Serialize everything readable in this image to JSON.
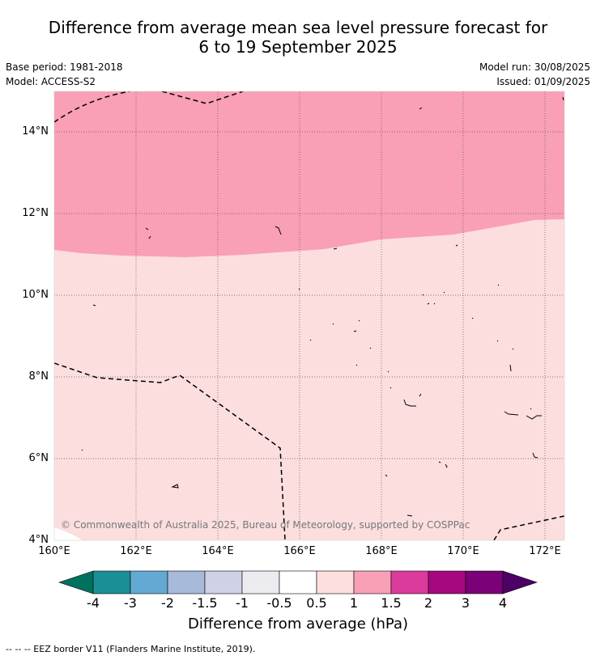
{
  "title": {
    "line1": "Difference from average mean sea level pressure forecast for",
    "line2": "6 to 19 September 2025"
  },
  "meta": {
    "base_period": "Base period: 1981-2018",
    "model": "Model: ACCESS-S2",
    "model_run": "Model run: 30/08/2025",
    "issued": "Issued: 01/09/2025"
  },
  "map": {
    "lat_ticks": [
      "14°N",
      "12°N",
      "10°N",
      "8°N",
      "6°N",
      "4°N"
    ],
    "lon_ticks": [
      "160°E",
      "162°E",
      "164°E",
      "166°E",
      "168°E",
      "170°E",
      "172°E"
    ],
    "lat_range": [
      4,
      15
    ],
    "lon_range": [
      160,
      172.5
    ],
    "copyright": "© Commonwealth of Australia 2025, Bureau of Meteorology, supported by COSPPac",
    "fill_colors": {
      "band_1_to_1_5": "#f99fb6",
      "band_0_5_to_1": "#fcdede",
      "band_neg0_5_to_0_5": "#ffffff"
    }
  },
  "colorbar": {
    "ticks": [
      "-4",
      "-3",
      "-2",
      "-1.5",
      "-1",
      "-0.5",
      "0.5",
      "1",
      "1.5",
      "2",
      "3",
      "4"
    ],
    "colors": [
      "#00715f",
      "#1a9096",
      "#63a9d3",
      "#a7bada",
      "#cfd1e6",
      "#ececf0",
      "#ffffff",
      "#fde0de",
      "#f99fb6",
      "#db3b9c",
      "#a6087f",
      "#7a0177",
      "#4d0066"
    ],
    "label": "Difference from average (hPa)"
  },
  "footer": "-- -- -- EEZ border V11 (Flanders Marine Institute, 2019)."
}
